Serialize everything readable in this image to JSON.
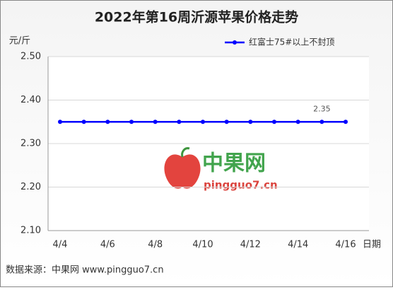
{
  "chart_data": {
    "type": "line",
    "title": "2022年第16周沂源苹果价格走势",
    "y_label": "元/斤",
    "x_label": "日期",
    "categories": [
      "4/4",
      null,
      "4/6",
      null,
      "4/8",
      null,
      "4/10",
      null,
      "4/12",
      null,
      "4/14",
      null,
      "4/16"
    ],
    "series": [
      {
        "name": "红富士75#以上不封顶",
        "color": "#0000ff",
        "values": [
          2.35,
          2.35,
          2.35,
          2.35,
          2.35,
          2.35,
          2.35,
          2.35,
          2.35,
          2.35,
          2.35,
          2.35,
          2.35
        ],
        "value_labels": [
          null,
          null,
          null,
          null,
          null,
          null,
          null,
          null,
          null,
          null,
          null,
          "2.35",
          null
        ]
      }
    ],
    "ylim": [
      2.1,
      2.5
    ],
    "yticks": [
      {
        "value": 2.1,
        "label": "2.10"
      },
      {
        "value": 2.2,
        "label": "2.20"
      },
      {
        "value": 2.3,
        "label": "2.30"
      },
      {
        "value": 2.4,
        "label": "2.40"
      },
      {
        "value": 2.5,
        "label": "2.50"
      }
    ],
    "grid": true,
    "legend": "top-right",
    "watermark": {
      "brand": "中果网",
      "url": "pingguo7.cn"
    },
    "source": "数据来源：中果网 www.pingguo7.cn"
  }
}
